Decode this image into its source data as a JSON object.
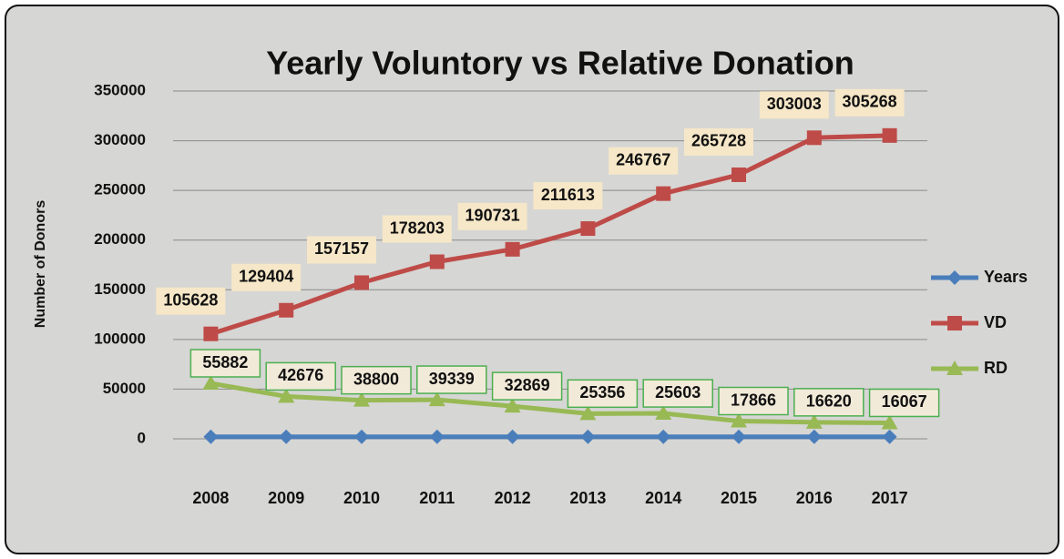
{
  "chart_data": {
    "type": "line",
    "title": "Yearly Voluntory  vs Relative Donation",
    "y_label": "Number of Donors",
    "categories": [
      "2008",
      "2009",
      "2010",
      "2011",
      "2012",
      "2013",
      "2014",
      "2015",
      "2016",
      "2017"
    ],
    "series": [
      {
        "name": "Years",
        "color": "#4a7ebb",
        "marker": "diamond",
        "values": [
          2008,
          2009,
          2010,
          2011,
          2012,
          2013,
          2014,
          2015,
          2016,
          2017
        ]
      },
      {
        "name": "VD",
        "color": "#be4b48",
        "marker": "square",
        "data_labels": true,
        "values": [
          105628,
          129404,
          157157,
          178203,
          190731,
          211613,
          246767,
          265728,
          303003,
          305268
        ]
      },
      {
        "name": "RD",
        "color": "#98b954",
        "marker": "triangle",
        "data_labels": true,
        "values": [
          55882,
          42676,
          38800,
          39339,
          32869,
          25356,
          25603,
          17866,
          16620,
          16067
        ]
      }
    ],
    "ylim": [
      0,
      350000
    ],
    "yticks": [
      0,
      50000,
      100000,
      150000,
      200000,
      250000,
      300000,
      350000
    ],
    "grid": true,
    "legend": "right"
  }
}
